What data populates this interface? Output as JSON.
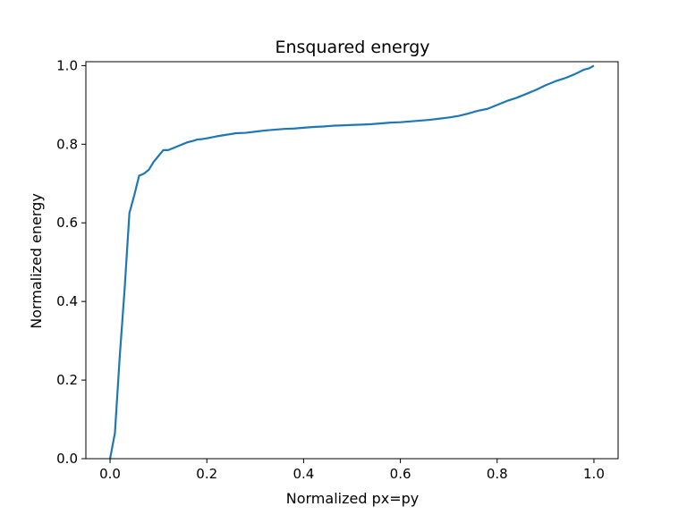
{
  "chart_data": {
    "type": "line",
    "title": "Ensquared energy",
    "xlabel": "Normalized px=py",
    "ylabel": "Normalized energy",
    "xlim": [
      -0.05,
      1.05
    ],
    "ylim": [
      0.0,
      1.01
    ],
    "xticks": [
      "0.0",
      "0.2",
      "0.4",
      "0.6",
      "0.8",
      "1.0"
    ],
    "yticks": [
      "0.0",
      "0.2",
      "0.4",
      "0.6",
      "0.8",
      "1.0"
    ],
    "grid": false,
    "legend": "none",
    "series": [
      {
        "color": "#1f77b4",
        "x": [
          0.0,
          0.01,
          0.02,
          0.03,
          0.04,
          0.05,
          0.06,
          0.07,
          0.08,
          0.09,
          0.1,
          0.11,
          0.12,
          0.13,
          0.14,
          0.15,
          0.16,
          0.17,
          0.18,
          0.19,
          0.2,
          0.22,
          0.24,
          0.26,
          0.28,
          0.3,
          0.32,
          0.34,
          0.36,
          0.38,
          0.4,
          0.42,
          0.44,
          0.46,
          0.48,
          0.5,
          0.52,
          0.54,
          0.56,
          0.58,
          0.6,
          0.62,
          0.64,
          0.66,
          0.68,
          0.7,
          0.72,
          0.74,
          0.76,
          0.78,
          0.8,
          0.82,
          0.84,
          0.86,
          0.88,
          0.9,
          0.92,
          0.94,
          0.96,
          0.98,
          0.99,
          1.0
        ],
        "y": [
          0.0,
          0.065,
          0.26,
          0.43,
          0.625,
          0.67,
          0.72,
          0.725,
          0.735,
          0.755,
          0.77,
          0.785,
          0.785,
          0.79,
          0.795,
          0.8,
          0.805,
          0.808,
          0.812,
          0.813,
          0.815,
          0.82,
          0.824,
          0.828,
          0.829,
          0.832,
          0.835,
          0.837,
          0.839,
          0.84,
          0.842,
          0.844,
          0.845,
          0.847,
          0.848,
          0.849,
          0.85,
          0.851,
          0.853,
          0.855,
          0.856,
          0.858,
          0.86,
          0.862,
          0.865,
          0.868,
          0.872,
          0.878,
          0.885,
          0.89,
          0.9,
          0.91,
          0.918,
          0.928,
          0.938,
          0.95,
          0.96,
          0.968,
          0.978,
          0.99,
          0.993,
          1.0
        ]
      }
    ]
  }
}
